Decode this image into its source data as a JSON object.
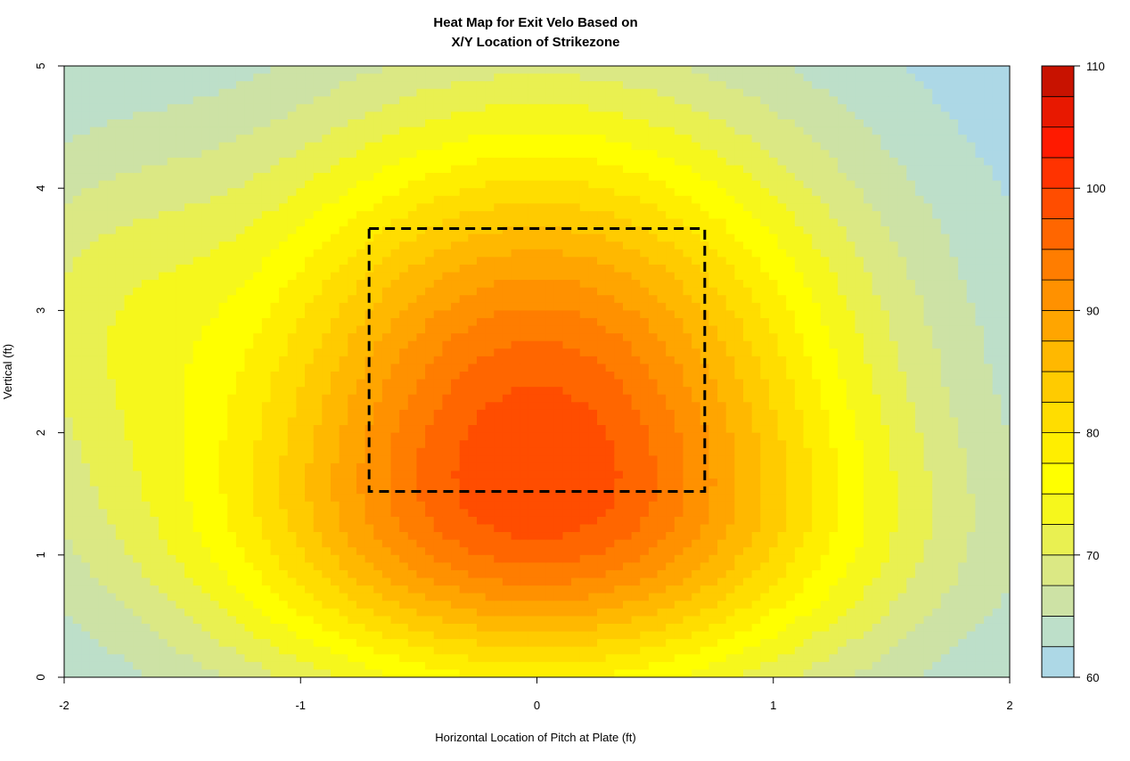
{
  "chart_data": {
    "type": "heatmap",
    "title_line1": "Heat Map for Exit Velo Based on",
    "title_line2": "X/Y Location of Strikezone",
    "xlabel": "Horizontal Location of Pitch at Plate (ft)",
    "ylabel": "Vertical (ft)",
    "xlim": [
      -2,
      2
    ],
    "ylim": [
      0,
      5
    ],
    "x_ticks": [
      -2,
      -1,
      0,
      1,
      2
    ],
    "y_ticks": [
      0,
      1,
      2,
      3,
      4,
      5
    ],
    "x_tick_labels": [
      "-2",
      "-1",
      "0",
      "1",
      "2"
    ],
    "y_tick_labels": [
      "0",
      "1",
      "2",
      "3",
      "4",
      "5"
    ],
    "colorbar": {
      "min": 60,
      "max": 110,
      "step": 2.5,
      "ticks": [
        60,
        70,
        80,
        90,
        100,
        110
      ],
      "tick_labels": [
        "60",
        "70",
        "80",
        "90",
        "100",
        "110"
      ]
    },
    "strike_zone": {
      "x_min": -0.71,
      "x_max": 0.71,
      "y_min": 1.52,
      "y_max": 3.67
    },
    "peak": {
      "x": 0.0,
      "y": 2.3,
      "value": 95.5
    },
    "contour_colors": [
      "#add8e6",
      "#bddfc9",
      "#cde2a5",
      "#dbe884",
      "#e9f051",
      "#f6f71c",
      "#ffff00",
      "#ffee00",
      "#ffdd00",
      "#ffcb00",
      "#ffb800",
      "#ffa500",
      "#ff9100",
      "#ff7d00",
      "#ff6600",
      "#ff4d00",
      "#ff3300",
      "#ff1a00",
      "#e81800",
      "#c81200"
    ]
  }
}
